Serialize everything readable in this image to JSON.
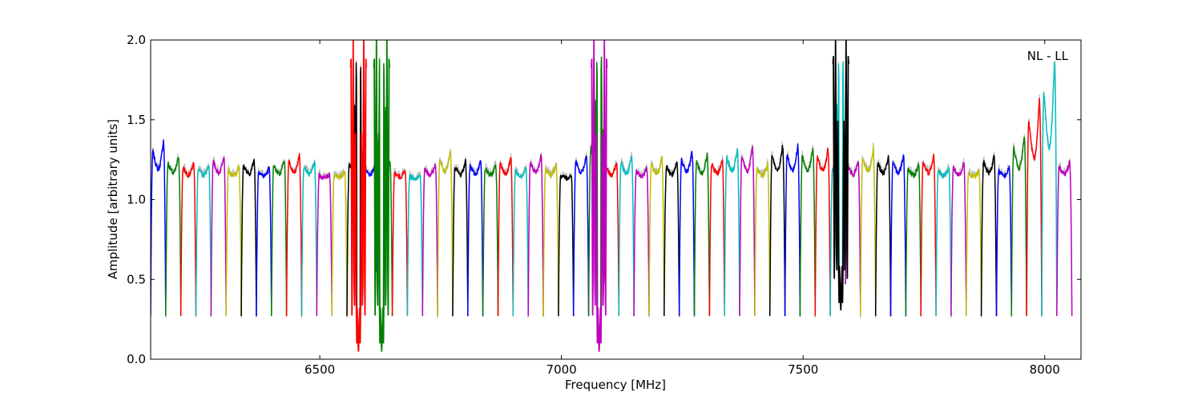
{
  "chart_data": {
    "type": "line",
    "annotation": "NL - LL",
    "xlabel": "Frequency [MHz]",
    "ylabel": "Amplitude [arbitrary units]",
    "xlim": [
      6150,
      8075
    ],
    "ylim": [
      0.0,
      2.0
    ],
    "x_ticks": [
      6500,
      7000,
      7500,
      8000
    ],
    "x_tick_labels": [
      "6500",
      "7000",
      "7500",
      "8000"
    ],
    "y_ticks": [
      0.0,
      0.5,
      1.0,
      1.5,
      2.0
    ],
    "y_tick_labels": [
      "0.0",
      "0.5",
      "1.0",
      "1.5",
      "2.0"
    ],
    "grid": false,
    "legend": "none",
    "color_cycle": [
      "#0000ff",
      "#008000",
      "#ff0000",
      "#00bfbf",
      "#bf00bf",
      "#bfbf00",
      "#000000"
    ],
    "shadow_color": "#bbbbbb",
    "subbands": {
      "start_mhz": 6150,
      "width_mhz": 31.25,
      "count": 61,
      "peaks": [
        1.37,
        1.27,
        1.23,
        1.22,
        1.28,
        1.21,
        1.25,
        1.2,
        1.25,
        1.28,
        1.24,
        1.16,
        1.17,
        1.26,
        1.22,
        1.24,
        1.18,
        1.15,
        1.22,
        1.3,
        1.24,
        1.25,
        1.22,
        1.26,
        1.2,
        1.28,
        1.22,
        1.15,
        1.28,
        1.4,
        1.23,
        1.27,
        1.2,
        1.26,
        1.24,
        1.3,
        1.28,
        1.26,
        1.32,
        1.33,
        1.22,
        1.34,
        1.34,
        1.33,
        1.32,
        1.22,
        1.24,
        1.32,
        1.27,
        1.28,
        1.22,
        1.28,
        1.2,
        1.23,
        1.18,
        1.28,
        1.2,
        1.4,
        1.63,
        1.87,
        1.24
      ],
      "dip_min": 0.27
    },
    "rfi_features": [
      {
        "center_mhz": 6580,
        "min": 0.05,
        "max": 2.0,
        "color": "#ff0000"
      },
      {
        "center_mhz": 6628,
        "min": 0.05,
        "max": 2.0,
        "color": "#008000"
      },
      {
        "center_mhz": 7078,
        "min": 0.05,
        "max": 2.0,
        "color": "#bf00bf"
      },
      {
        "center_mhz": 7578,
        "min": 0.31,
        "max": 2.0,
        "color": "#000000"
      }
    ]
  }
}
